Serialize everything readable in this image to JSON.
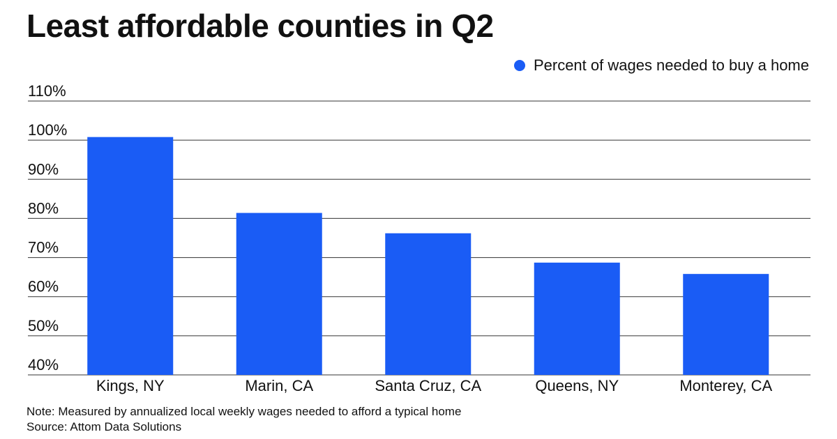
{
  "colors": {
    "bar": "#1a5cf5",
    "grid": "#333333",
    "text": "#111111"
  },
  "chart_data": {
    "type": "bar",
    "title": "Least affordable counties in Q2",
    "categories": [
      "Kings, NY",
      "Marin, CA",
      "Santa Cruz, CA",
      "Queens, NY",
      "Monterey, CA"
    ],
    "series": [
      {
        "name": "Percent of wages needed to buy a home",
        "values": [
          100.8,
          81.4,
          76.2,
          68.7,
          65.8
        ]
      }
    ],
    "ylim": [
      40,
      110
    ],
    "yticks": [
      40,
      50,
      60,
      70,
      80,
      90,
      100,
      110
    ],
    "ytick_labels": [
      "40%",
      "50%",
      "60%",
      "70%",
      "80%",
      "90%",
      "100%",
      "110%"
    ],
    "xlabel": "",
    "ylabel": "",
    "grid": true,
    "legend_position": "top-right"
  },
  "notes": {
    "note": "Note: Measured by annualized local weekly wages needed to afford a typical home",
    "source": "Source: Attom Data Solutions"
  }
}
